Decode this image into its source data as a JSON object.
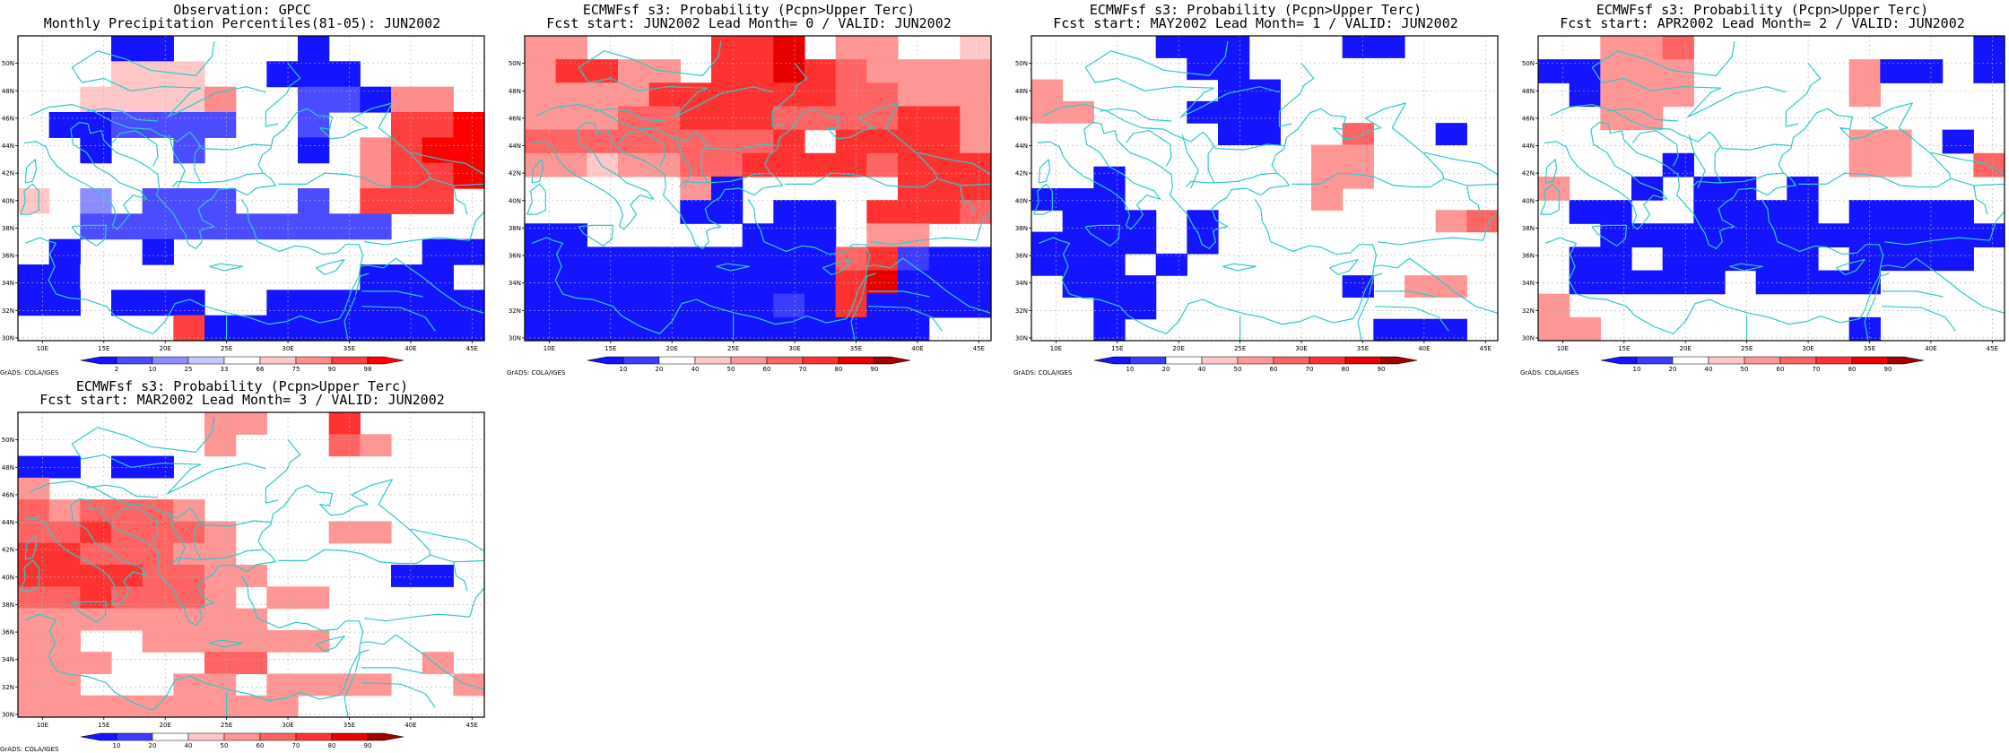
{
  "map": {
    "lon_labels": [
      "10E",
      "15E",
      "20E",
      "25E",
      "30E",
      "35E",
      "40E",
      "45E"
    ],
    "lat_labels": [
      "30N",
      "32N",
      "34N",
      "36N",
      "38N",
      "40N",
      "42N",
      "44N",
      "46N",
      "48N",
      "50N"
    ],
    "credit": "GrADS: COLA/IGES",
    "coast_color": "#30c8c8"
  },
  "panels": [
    {
      "id": "obs",
      "title1": "Observation: GPCC",
      "title2": "Monthly Precipitation Percentiles(81-05): JUN2002",
      "colorbar": {
        "labels": [
          "2",
          "10",
          "25",
          "33",
          "66",
          "75",
          "90",
          "98"
        ],
        "colors": [
          "#1414ff",
          "#4b4bff",
          "#8c8cff",
          "#c8c8ff",
          "#ffffff",
          "#ffc8c8",
          "#ff8c8c",
          "#ff4040",
          "#ff0000"
        ]
      },
      "grid": [
        "000110000100000",
        "000666001110000",
        "006666700221770",
        "011222200200889",
        "001002000107899",
        "550000000007889",
        "603022200208880",
        "502222222222000",
        "010010000000011",
        "115000000001110",
        "110111001111111",
        "000008111111111"
      ]
    },
    {
      "id": "lead0",
      "title1": "ECMWFsf s3: Probability (Pcpn>Upper Terc)",
      "title2": "Fcst start: JUN2002  Lead Month= 0 / VALID: JUN2002",
      "colorbar": {
        "labels": [
          "10",
          "20",
          "40",
          "50",
          "60",
          "70",
          "80",
          "90"
        ],
        "colors": [
          "#1414ff",
          "#3c3cff",
          "#ffffff",
          "#ffc8c8",
          "#ff9696",
          "#ff6464",
          "#ff3232",
          "#e60000",
          "#a00000"
        ]
      },
      "grid": [
        "550000778055004",
        "577550778765555",
        "555577777766555",
        "555667776666775",
        "666666667077775",
        "554556677776777",
        "000005100000777",
        "000001101107776",
        "110000011105500",
        "111111111167211",
        "111111111178111",
        "111111112171111",
        "111111111111100"
      ]
    },
    {
      "id": "lead1",
      "title1": "ECMWFsf s3: Probability (Pcpn>Upper Terc)",
      "title2": "Fcst start: MAY2002  Lead Month= 1 / VALID: JUN2002",
      "colorbar": {
        "labels": [
          "10",
          "20",
          "40",
          "50",
          "60",
          "70",
          "80",
          "90"
        ],
        "colors": [
          "#1414ff",
          "#3c3cff",
          "#ffffff",
          "#ffc8c8",
          "#ff9696",
          "#ff6464",
          "#ff3232",
          "#e60000",
          "#a00000"
        ]
      },
      "grid": [
        "000011100011000",
        "000001100000000",
        "500000110000000",
        "550001110000000",
        "000000110060010",
        "000000000550000",
        "001000000550000",
        "111000000500000",
        "011101000000056",
        "111101000000000",
        "111010000000000",
        "011100000010550",
        "001100000000000",
        "001000000001110"
      ]
    },
    {
      "id": "lead2",
      "title1": "ECMWFsf s3: Probability (Pcpn>Upper Terc)",
      "title2": "Fcst start: APR2002  Lead Month= 2 / VALID: JUN2002",
      "colorbar": {
        "labels": [
          "10",
          "20",
          "40",
          "50",
          "60",
          "70",
          "80",
          "90"
        ],
        "colors": [
          "#1414ff",
          "#3c3cff",
          "#ffffff",
          "#ffc8c8",
          "#ff9696",
          "#ff6464",
          "#ff3232",
          "#e60000",
          "#a00000"
        ]
      },
      "grid": [
        "005560000000001",
        "115550000051101",
        "015550000050000",
        "005500000000000",
        "000000000055010",
        "000010000055006",
        "500101101000000",
        "011001111011110",
        "001111111111111",
        "011011111011110",
        "011111011110000",
        "500000000000000",
        "550000000010000"
      ]
    },
    {
      "id": "lead3",
      "title1": "ECMWFsf s3: Probability (Pcpn>Upper Terc)",
      "title2": "Fcst start: MAR2002  Lead Month= 3 / VALID: JUN2002",
      "colorbar": {
        "labels": [
          "10",
          "20",
          "40",
          "50",
          "60",
          "70",
          "80",
          "90"
        ],
        "colors": [
          "#1414ff",
          "#3c3cff",
          "#ffffff",
          "#ffc8c8",
          "#ff9696",
          "#ff6464",
          "#ff3232",
          "#e60000",
          "#a00000"
        ]
      },
      "grid": [
        "000000550070000",
        "000000500065000",
        "110110000000000",
        "500000000000000",
        "656665000000000",
        "667666500055000",
        "776665500000000",
        "777766550000110",
        "667666505500000",
        "555555550000000",
        "550055555500000",
        "555000660000050",
        "550005505555005",
        "555555555000000"
      ]
    }
  ]
}
